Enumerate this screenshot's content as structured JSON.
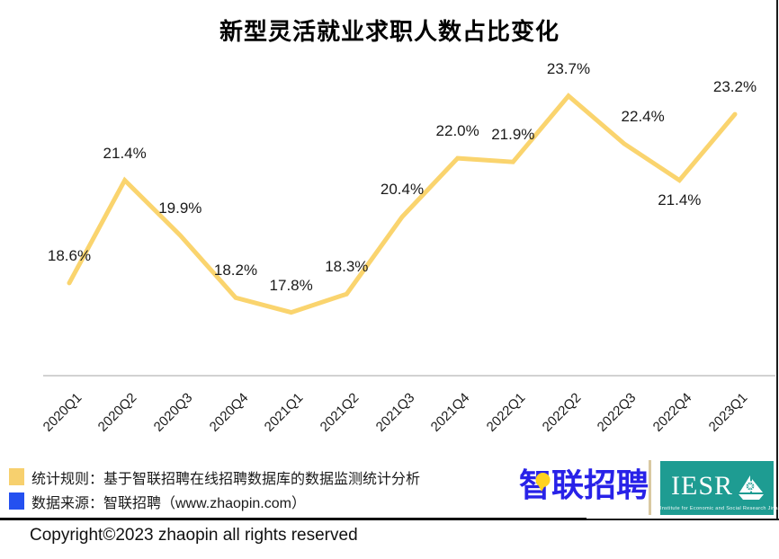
{
  "title": "新型灵活就业求职人数占比变化",
  "chart_data": {
    "type": "line",
    "title": "新型灵活就业求职人数占比变化",
    "categories": [
      "2020Q1",
      "2020Q2",
      "2020Q3",
      "2020Q4",
      "2021Q1",
      "2021Q2",
      "2021Q3",
      "2021Q4",
      "2022Q1",
      "2022Q2",
      "2022Q3",
      "2022Q4",
      "2023Q1"
    ],
    "values": [
      18.6,
      21.4,
      19.9,
      18.2,
      17.8,
      18.3,
      20.4,
      22.0,
      21.9,
      23.7,
      22.4,
      21.4,
      23.2
    ],
    "point_labels": [
      "18.6%",
      "21.4%",
      "19.9%",
      "18.2%",
      "17.8%",
      "18.3%",
      "20.4%",
      "22.0%",
      "21.9%",
      "23.7%",
      "22.4%",
      "21.4%",
      "23.2%"
    ],
    "label_placement": [
      "above",
      "above",
      "above",
      "above",
      "above",
      "above",
      "above",
      "above",
      "above",
      "above",
      "above-right",
      "below",
      "above"
    ],
    "xlabel": "",
    "ylabel": "",
    "ylim": [
      16.1,
      24.5
    ],
    "grid": false,
    "legend_position": "none",
    "line_color": "#fad46e",
    "label_color": "#1a1a1a",
    "axis_color": "#d2d2d2"
  },
  "legend": {
    "items": [
      {
        "swatch_color": "#f7d06e",
        "label": "统计规则：基于智联招聘在线招聘数据库的数据监测统计分析"
      },
      {
        "swatch_color": "#2450f0",
        "label": "数据来源：智联招聘（www.zhaopin.com）"
      }
    ]
  },
  "branding": {
    "zhaopin_logo_text": "智联招聘",
    "zhaopin_logo_color": "#2822e8",
    "pin_color": "#ffd21e",
    "iesr_logo_text": "IESR",
    "iesr_logo_subtext": "Institute for Economic and Social Research   Jinan University",
    "iesr_bg_color": "#1e9c92"
  },
  "footer": {
    "copyright_text": "Copyright©2023 zhaopin all rights reserved"
  }
}
